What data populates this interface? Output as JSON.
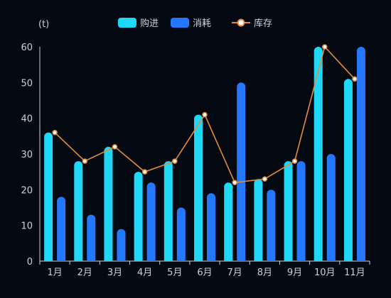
{
  "chart_data": {
    "type": "bar",
    "unit_label": "(t)",
    "categories": [
      "1月",
      "2月",
      "3月",
      "4月",
      "5月",
      "6月",
      "7月",
      "8月",
      "9月",
      "10月",
      "11月"
    ],
    "series": [
      {
        "name": "购进",
        "kind": "bar",
        "color": "#1fd7f7",
        "values": [
          36,
          28,
          32,
          25,
          28,
          41,
          22,
          23,
          28,
          60,
          51
        ]
      },
      {
        "name": "消耗",
        "kind": "bar",
        "color": "#2478ff",
        "values": [
          18,
          13,
          9,
          22,
          15,
          19,
          50,
          20,
          28,
          30,
          60
        ]
      },
      {
        "name": "库存",
        "kind": "line",
        "color": "#e58a3a",
        "values": [
          36,
          28,
          32,
          25,
          28,
          41,
          22,
          23,
          28,
          60,
          51
        ]
      }
    ],
    "yticks": [
      0,
      10,
      20,
      30,
      40,
      50,
      60
    ],
    "ylim": [
      0,
      60
    ],
    "legend_position": "top-center",
    "grid": false
  }
}
